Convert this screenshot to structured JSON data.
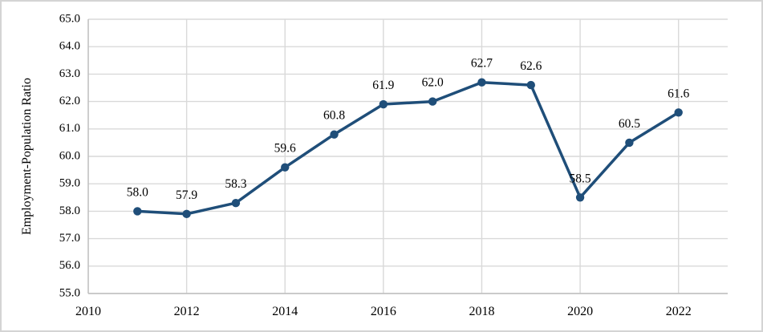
{
  "window": {
    "background": "#FFFFFF",
    "border_color": "#D4D4D4"
  },
  "chart_data": {
    "type": "line",
    "title": "",
    "xlabel": "",
    "ylabel": "Employment-Population Ratio",
    "x": [
      2011,
      2012,
      2013,
      2014,
      2015,
      2016,
      2017,
      2018,
      2019,
      2020,
      2021,
      2022
    ],
    "series": [
      {
        "name": "Employment-Population Ratio",
        "values": [
          58.0,
          57.9,
          58.3,
          59.6,
          60.8,
          61.9,
          62.0,
          62.7,
          62.6,
          58.5,
          60.5,
          61.6
        ]
      }
    ],
    "data_labels": [
      "58.0",
      "57.9",
      "58.3",
      "59.6",
      "60.8",
      "61.9",
      "62.0",
      "62.7",
      "62.6",
      "58.5",
      "60.5",
      "61.6"
    ],
    "xlim": [
      2010,
      2023
    ],
    "ylim": [
      55.0,
      65.0
    ],
    "xticks": [
      2010,
      2012,
      2014,
      2016,
      2018,
      2020,
      2022
    ],
    "yticks": [
      "55.0",
      "56.0",
      "57.0",
      "58.0",
      "59.0",
      "60.0",
      "61.0",
      "62.0",
      "63.0",
      "64.0",
      "65.0"
    ],
    "grid": true,
    "legend_position": "none",
    "line_color": "#1F4E79",
    "marker_color": "#1F4E79",
    "gridline_color": "#D9D9D9",
    "axis_line_color": "#BFBFBF",
    "tick_label_color": "#000000",
    "data_label_color": "#000000"
  }
}
